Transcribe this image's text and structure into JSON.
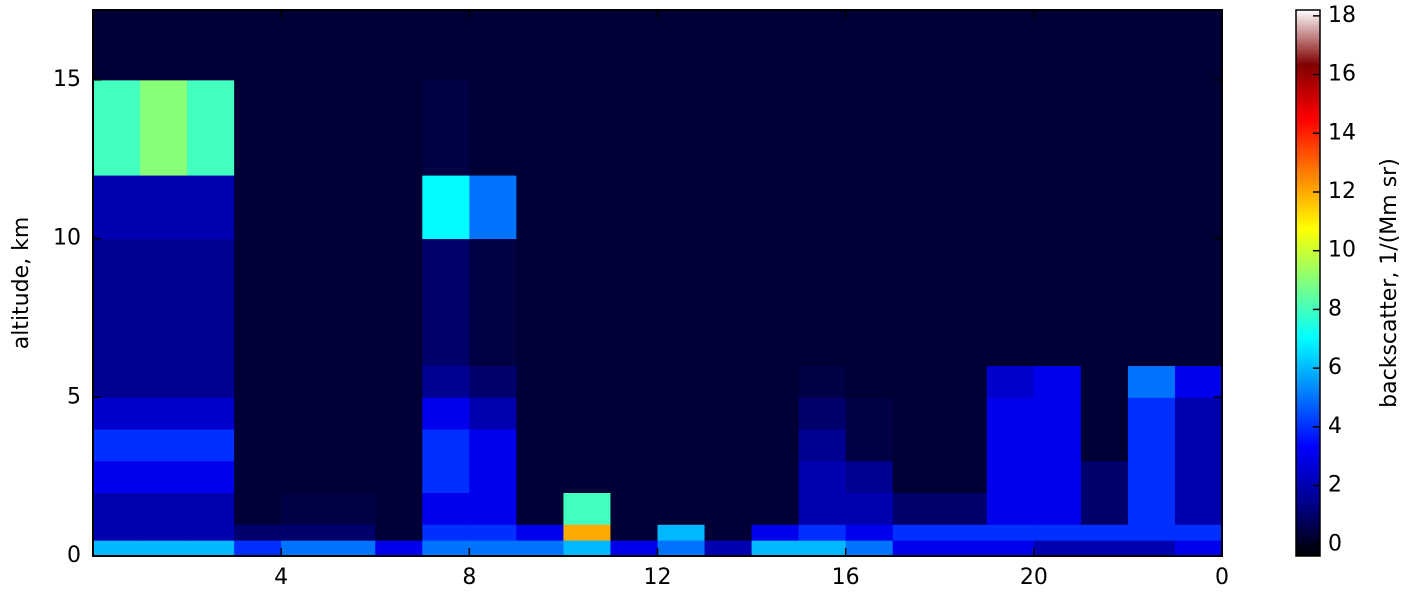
{
  "chart_data": {
    "type": "heatmap",
    "y_label": "altitude, km",
    "colorbar_label": "backscatter, 1/(Mm sr)",
    "x_edges": [
      0,
      1,
      2,
      3,
      4,
      5,
      6,
      7,
      8,
      9,
      10,
      11,
      12,
      13,
      14,
      15,
      16,
      17,
      18,
      19,
      20,
      21,
      22,
      23,
      24
    ],
    "y_edges": [
      0,
      0.5,
      1,
      2,
      3,
      4,
      5,
      6,
      8,
      10,
      12,
      15,
      17.2
    ],
    "z": [
      [
        6,
        6,
        6,
        4,
        5,
        5,
        3,
        5,
        5,
        5,
        6,
        3,
        5,
        2,
        6,
        6,
        5,
        3,
        3,
        3,
        2,
        2,
        2,
        3
      ],
      [
        2,
        2,
        2,
        1,
        1,
        1,
        0.3,
        4,
        4,
        3,
        12,
        0.3,
        6,
        0.3,
        3,
        4,
        3,
        4,
        4,
        4,
        4,
        4,
        4,
        4
      ],
      [
        2,
        2,
        2,
        0.3,
        0.5,
        0.5,
        0.3,
        3,
        3,
        0.3,
        8,
        0.3,
        0.3,
        0.3,
        0.3,
        2,
        2,
        1,
        1,
        3,
        3,
        1,
        4,
        2
      ],
      [
        3,
        3,
        3,
        0.3,
        0.3,
        0.3,
        0.3,
        4,
        3,
        0.3,
        0.3,
        0.3,
        0.3,
        0.3,
        0.3,
        2,
        1.5,
        0.3,
        0.3,
        3,
        3,
        1,
        4,
        2
      ],
      [
        4,
        4,
        4,
        0.3,
        0.3,
        0.3,
        0.3,
        4,
        3,
        0.3,
        0.3,
        0.3,
        0.3,
        0.3,
        0.3,
        1.5,
        0.5,
        0.3,
        0.3,
        3,
        3,
        0.3,
        4,
        2
      ],
      [
        2.5,
        2.5,
        2.5,
        0.3,
        0.3,
        0.3,
        0.3,
        3,
        2,
        0.3,
        0.3,
        0.3,
        0.3,
        0.3,
        0.3,
        1,
        0.5,
        0.3,
        0.3,
        3,
        3,
        0.3,
        4,
        2
      ],
      [
        1.5,
        1.5,
        1.5,
        0.3,
        0.3,
        0.3,
        0.3,
        1.5,
        1,
        0.3,
        0.3,
        0.3,
        0.3,
        0.3,
        0.3,
        0.5,
        0.3,
        0.3,
        0.3,
        2.5,
        3,
        0.3,
        5,
        3
      ],
      [
        1.5,
        1.5,
        1.5,
        0.3,
        0.3,
        0.3,
        0.3,
        1,
        0.5,
        0.3,
        0.3,
        0.3,
        0.3,
        0.3,
        0.3,
        0.3,
        0.3,
        0.3,
        0.3,
        0.3,
        0.3,
        0.3,
        0.3,
        0.3
      ],
      [
        1.5,
        1.5,
        1.5,
        0.3,
        0.3,
        0.3,
        0.3,
        1,
        0.5,
        0.3,
        0.3,
        0.3,
        0.3,
        0.3,
        0.3,
        0.3,
        0.3,
        0.3,
        0.3,
        0.3,
        0.3,
        0.3,
        0.3,
        0.3
      ],
      [
        2,
        2,
        2,
        0.3,
        0.3,
        0.3,
        0.3,
        7,
        5,
        0.3,
        0.3,
        0.3,
        0.3,
        0.3,
        0.3,
        0.3,
        0.3,
        0.3,
        0.3,
        0.3,
        0.3,
        0.3,
        0.3,
        0.3
      ],
      [
        8,
        9,
        8,
        0.3,
        0.3,
        0.3,
        0.3,
        0.5,
        0.3,
        0.3,
        0.3,
        0.3,
        0.3,
        0.3,
        0.3,
        0.3,
        0.3,
        0.3,
        0.3,
        0.3,
        0.3,
        0.3,
        0.3,
        0.3
      ],
      [
        0.3,
        0.3,
        0.3,
        0.3,
        0.3,
        0.3,
        0.3,
        0.3,
        0.3,
        0.3,
        0.3,
        0.3,
        0.3,
        0.3,
        0.3,
        0.3,
        0.3,
        0.3,
        0.3,
        0.3,
        0.3,
        0.3,
        0.3,
        0.3
      ]
    ],
    "xlim": [
      0,
      24
    ],
    "xticks": [
      4,
      8,
      12,
      16,
      20,
      {
        "value": 24,
        "label": "0"
      }
    ],
    "ylim": [
      0,
      17.2
    ],
    "yticks": [
      0,
      5,
      10,
      15
    ],
    "clim": [
      -0.4,
      18.2
    ],
    "cticks": [
      0,
      2,
      4,
      6,
      8,
      10,
      12,
      14,
      16,
      18
    ],
    "colormap": [
      "#000000",
      "#00008f",
      "#0000ff",
      "#0080ff",
      "#00ffff",
      "#80ff80",
      "#ffff00",
      "#ff8000",
      "#ff0000",
      "#800000",
      "#ffffff"
    ]
  }
}
